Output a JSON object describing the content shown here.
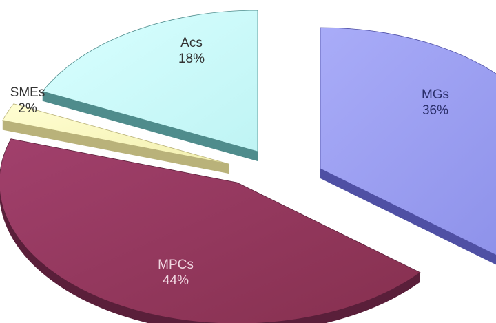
{
  "chart_data": {
    "type": "pie",
    "style": "exploded-3d",
    "slices": [
      {
        "name": "MGs",
        "value": 36,
        "value_label": "36%",
        "color": "#9fa2f4",
        "side_color": "#4f50a4"
      },
      {
        "name": "MPCs",
        "value": 44,
        "value_label": "44%",
        "color": "#973862",
        "side_color": "#5a1f3a"
      },
      {
        "name": "SMEs",
        "value": 2,
        "value_label": "2%",
        "color": "#fefdc4",
        "side_color": "#b9b27a"
      },
      {
        "name": "Acs",
        "value": 18,
        "value_label": "18%",
        "color": "#ceffff",
        "side_color": "#4f8c8c"
      }
    ],
    "title": "",
    "legend": "none"
  }
}
